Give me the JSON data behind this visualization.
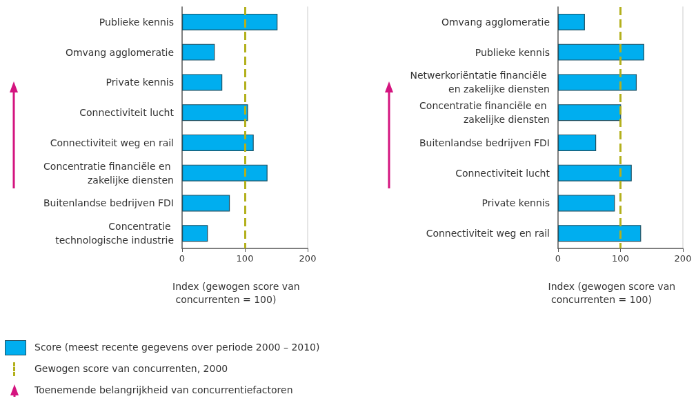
{
  "chart_data": [
    {
      "type": "bar",
      "orientation": "horizontal",
      "categories": [
        "Publieke kennis",
        "Omvang agglomeratie",
        "Private kennis",
        "Connectiviteit lucht",
        "Connectiviteit weg en rail",
        "Concentratie financiële en zakelijke diensten",
        "Buitenlandse bedrijven FDI",
        "Concentratie technologische industrie"
      ],
      "series": [
        {
          "name": "Score (meest recente gegevens over periode 2000 – 2010)",
          "color": "#00aeef",
          "values": [
            152,
            52,
            64,
            105,
            114,
            136,
            76,
            41
          ]
        }
      ],
      "xlim": [
        0,
        200
      ],
      "xticks": [
        0,
        100,
        200
      ],
      "xlabel": "Index (gewogen score van concurrenten = 100)",
      "ref_lines": [
        {
          "axis": "x",
          "value": 100,
          "label": "Gewogen score van concurrenten, 2000",
          "color": "#b3b01c",
          "line_style": "dashed"
        }
      ],
      "annotations": [
        "Toenemende belangrijkheid van concurrentiefactoren"
      ],
      "legend": "bottom"
    },
    {
      "type": "bar",
      "orientation": "horizontal",
      "categories": [
        "Omvang agglomeratie",
        "Publieke kennis",
        "Netwerkoriëntatie financiële en zakelijke diensten",
        "Concentratie financiële en zakelijke diensten",
        "Buitenlandse bedrijven FDI",
        "Connectiviteit lucht",
        "Private kennis",
        "Connectiviteit weg en rail"
      ],
      "series": [
        {
          "color": "#00aeef",
          "values": [
            43,
            138,
            126,
            101,
            61,
            118,
            91,
            133
          ]
        }
      ],
      "xlim": [
        0,
        200
      ],
      "xticks": [
        0,
        100,
        200
      ],
      "xlabel": "Index (gewogen score van concurrenten = 100)",
      "ref_lines": [
        {
          "axis": "x",
          "value": 100,
          "color": "#b3b01c",
          "line_style": "dashed"
        }
      ]
    }
  ]
}
